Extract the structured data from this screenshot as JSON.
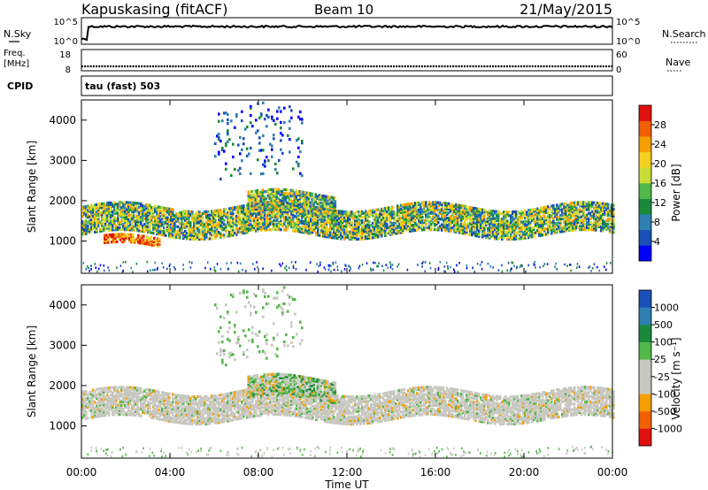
{
  "header": {
    "station": "Kapuskasing (fitACF)",
    "beam": "Beam 10",
    "date": "21/May/2015"
  },
  "top_panels": {
    "nsky": {
      "label": "N.Sky",
      "ticks": [
        "10^5",
        "10^0"
      ]
    },
    "nsearch": {
      "label": "N.Search",
      "ticks": [
        "10^5",
        "10^0"
      ]
    },
    "freq": {
      "label_line1": "Freq.",
      "label_line2": "[MHz]",
      "ticks": [
        "18",
        "8"
      ]
    },
    "nave": {
      "label": "Nave",
      "ticks": [
        "60",
        "0"
      ]
    },
    "cpid": {
      "label": "CPID",
      "value": "tau (fast) 503"
    }
  },
  "chart_data": [
    {
      "type": "heatmap",
      "panel": "power",
      "ylabel": "Slant Range [km]",
      "yticks": [
        "4000",
        "3000",
        "2000",
        "1000"
      ],
      "ylim": [
        200,
        4500
      ],
      "xlim": [
        "00:00",
        "24:00"
      ],
      "colorbar": {
        "label": "Power [dB]",
        "ticks": [
          "28",
          "24",
          "20",
          "16",
          "12",
          "8",
          "4"
        ],
        "range": [
          0,
          30
        ],
        "colors": [
          "#0000ff",
          "#1a4fb8",
          "#2e7fb2",
          "#1a8a3a",
          "#52b848",
          "#c8dc36",
          "#f5d020",
          "#f5a000",
          "#f06000",
          "#e01010"
        ]
      },
      "bands": [
        {
          "start": "00:00",
          "end": "24:00",
          "range_low": 1200,
          "range_high": 1900,
          "level": "medium"
        },
        {
          "start": "01:00",
          "end": "03:30",
          "range_low": 900,
          "range_high": 1100,
          "level": "high"
        },
        {
          "start": "07:30",
          "end": "11:30",
          "range_low": 1700,
          "range_high": 2200,
          "level": "medium"
        },
        {
          "start": "06:00",
          "end": "10:00",
          "range_low": 2600,
          "range_high": 4400,
          "level": "sparse"
        }
      ]
    },
    {
      "type": "heatmap",
      "panel": "velocity",
      "ylabel": "Slant Range [km]",
      "yticks": [
        "4000",
        "3000",
        "2000",
        "1000"
      ],
      "ylim": [
        200,
        4500
      ],
      "xlim": [
        "00:00",
        "24:00"
      ],
      "colorbar": {
        "label": "Velocity [m s⁻¹]",
        "ticks": [
          "1000",
          "500",
          "100",
          "25",
          "-25",
          "-100",
          "-500",
          "-1000"
        ],
        "range": [
          -1200,
          1200
        ],
        "colors": [
          "#e01010",
          "#f06000",
          "#f5a000",
          "#c8c8c0",
          "#c8c8c0",
          "#52b848",
          "#1a8a3a",
          "#2e7fb2",
          "#1a4fb8"
        ]
      },
      "bands": [
        {
          "start": "00:00",
          "end": "24:00",
          "range_low": 1200,
          "range_high": 1900,
          "level": "ground"
        },
        {
          "start": "07:30",
          "end": "11:30",
          "range_low": 1700,
          "range_high": 2200,
          "level": "mixed"
        },
        {
          "start": "06:00",
          "end": "10:00",
          "range_low": 2600,
          "range_high": 4400,
          "level": "sparse"
        }
      ]
    }
  ],
  "x_axis": {
    "ticks": [
      "00:00",
      "04:00",
      "08:00",
      "12:00",
      "16:00",
      "20:00",
      "00:00"
    ],
    "label": "Time UT"
  }
}
